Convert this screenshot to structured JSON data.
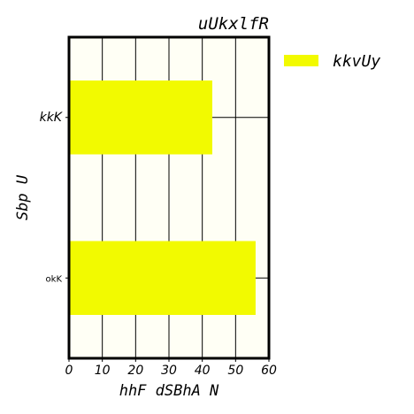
{
  "chart_data": {
    "type": "bar",
    "orientation": "horizontal",
    "title": "uUkxlfR",
    "xlabel": "hhF dSBhA N",
    "ylabel": "Sbp U",
    "categories": [
      "kkK",
      "okK"
    ],
    "series": [
      {
        "name": "kkvUy",
        "values": [
          43,
          56
        ],
        "color": "#f2fa00"
      }
    ],
    "xlim": [
      0,
      60
    ],
    "xticks": [
      0,
      10,
      20,
      30,
      40,
      50,
      60
    ],
    "grid": true,
    "legend_position": "outside-right",
    "background": "#fffff5"
  }
}
